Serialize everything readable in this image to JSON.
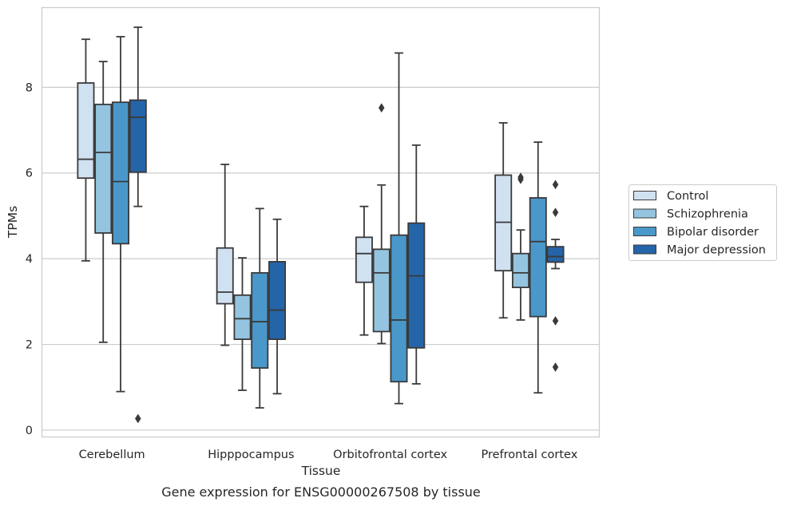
{
  "chart_data": {
    "type": "box",
    "title": "",
    "caption": "Gene expression for ENSG00000267508 by tissue",
    "xlabel": "Tissue",
    "ylabel": "TPMs",
    "ylim": [
      -0.15,
      9.85
    ],
    "yticks": [
      0,
      2,
      4,
      6,
      8
    ],
    "grid": "horizontal",
    "legend_position": "right",
    "colors": {
      "Control": "#d0e1f2",
      "Schizophrenia": "#94c4df",
      "Bipolar disorder": "#4a98c9",
      "Major depression": "#2464a8",
      "edge": "#3a3a3a",
      "grid": "#cccccc",
      "frame": "#cccccc"
    },
    "categories": [
      "Cerebellum",
      "Hipppocampus",
      "Orbitofrontal cortex",
      "Prefrontal cortex"
    ],
    "series": [
      {
        "name": "Control",
        "boxes": [
          {
            "whislo": 3.95,
            "q1": 5.88,
            "med": 6.32,
            "q3": 8.1,
            "whishi": 9.12,
            "fliers": []
          },
          {
            "whislo": 1.98,
            "q1": 2.95,
            "med": 3.22,
            "q3": 4.25,
            "whishi": 6.2,
            "fliers": []
          },
          {
            "whislo": 2.22,
            "q1": 3.45,
            "med": 4.12,
            "q3": 4.5,
            "whishi": 5.22,
            "fliers": []
          },
          {
            "whislo": 2.62,
            "q1": 3.72,
            "med": 4.85,
            "q3": 5.95,
            "whishi": 7.17,
            "fliers": []
          }
        ]
      },
      {
        "name": "Schizophrenia",
        "boxes": [
          {
            "whislo": 2.05,
            "q1": 4.6,
            "med": 6.48,
            "q3": 7.6,
            "whishi": 8.6,
            "fliers": []
          },
          {
            "whislo": 0.93,
            "q1": 2.12,
            "med": 2.6,
            "q3": 3.15,
            "whishi": 4.02,
            "fliers": []
          },
          {
            "whislo": 2.02,
            "q1": 2.3,
            "med": 3.67,
            "q3": 4.22,
            "whishi": 5.72,
            "fliers": [
              7.52
            ]
          },
          {
            "whislo": 2.57,
            "q1": 3.33,
            "med": 3.67,
            "q3": 4.12,
            "whishi": 4.67,
            "fliers": [
              5.85,
              5.9
            ]
          }
        ]
      },
      {
        "name": "Bipolar disorder",
        "boxes": [
          {
            "whislo": 0.9,
            "q1": 4.35,
            "med": 5.8,
            "q3": 7.65,
            "whishi": 9.18,
            "fliers": []
          },
          {
            "whislo": 0.52,
            "q1": 1.45,
            "med": 2.53,
            "q3": 3.67,
            "whishi": 5.17,
            "fliers": []
          },
          {
            "whislo": 0.62,
            "q1": 1.13,
            "med": 2.57,
            "q3": 4.55,
            "whishi": 8.8,
            "fliers": []
          },
          {
            "whislo": 0.87,
            "q1": 2.65,
            "med": 4.4,
            "q3": 5.42,
            "whishi": 6.72,
            "fliers": []
          }
        ]
      },
      {
        "name": "Major depression",
        "boxes": [
          {
            "whislo": 5.22,
            "q1": 6.02,
            "med": 7.3,
            "q3": 7.7,
            "whishi": 9.4,
            "fliers": [
              0.27
            ]
          },
          {
            "whislo": 0.85,
            "q1": 2.12,
            "med": 2.8,
            "q3": 3.93,
            "whishi": 4.92,
            "fliers": []
          },
          {
            "whislo": 1.08,
            "q1": 1.92,
            "med": 3.6,
            "q3": 4.83,
            "whishi": 6.65,
            "fliers": []
          },
          {
            "whislo": 3.77,
            "q1": 3.92,
            "med": 4.05,
            "q3": 4.28,
            "whishi": 4.45,
            "fliers": [
              5.73,
              5.08,
              2.55,
              1.47
            ]
          }
        ]
      }
    ]
  }
}
